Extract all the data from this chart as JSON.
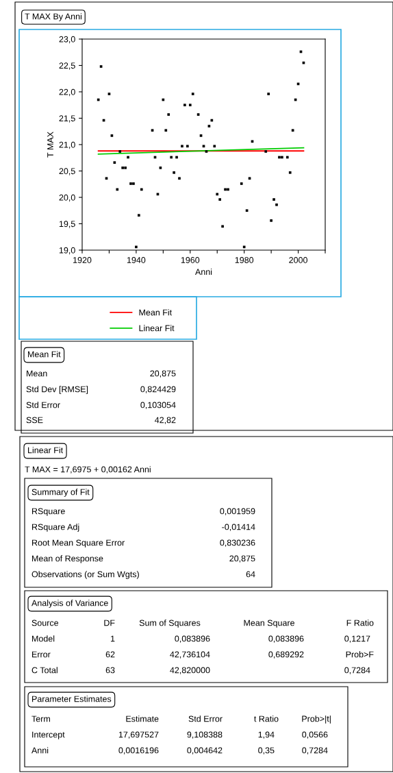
{
  "chart_data": {
    "type": "scatter",
    "title": "T MAX By Anni",
    "xlabel": "Anni",
    "ylabel": "T MAX",
    "xlim": [
      1920,
      2010
    ],
    "xticks": [
      1920,
      {
        "value": 1930,
        "label": null
      },
      1940,
      {
        "value": 1950,
        "label": null
      },
      1960,
      {
        "value": 1970,
        "label": null
      },
      1980,
      {
        "value": 1990,
        "label": null
      },
      2000,
      {
        "value": 2010,
        "label": null
      }
    ],
    "ylim": [
      19,
      23
    ],
    "yticks": [
      {
        "value": 19,
        "label": "19,0"
      },
      {
        "value": 19.5,
        "label": "19,5"
      },
      {
        "value": 20,
        "label": "20,0"
      },
      {
        "value": 20.5,
        "label": "20,5"
      },
      {
        "value": 21,
        "label": "21,0"
      },
      {
        "value": 21.5,
        "label": "21,5"
      },
      {
        "value": 22,
        "label": "22,0"
      },
      {
        "value": 22.5,
        "label": "22,5"
      },
      {
        "value": 23,
        "label": "23,0"
      }
    ],
    "grid": false,
    "legend": "bottom",
    "series": [
      {
        "marker": "square",
        "color": "#000000",
        "x": [
          1926,
          1927,
          1928,
          1929,
          1930,
          1931,
          1932,
          1933,
          1934,
          1935,
          1936,
          1937,
          1938,
          1939,
          1940,
          1941,
          1942,
          1946,
          1947,
          1948,
          1949,
          1950,
          1951,
          1952,
          1953,
          1954,
          1955,
          1956,
          1957,
          1958,
          1959,
          1960,
          1961,
          1963,
          1964,
          1965,
          1966,
          1967,
          1968,
          1969,
          1970,
          1971,
          1972,
          1973,
          1974,
          1979,
          1980,
          1981,
          1982,
          1983,
          1988,
          1989,
          1990,
          1991,
          1992,
          1993,
          1994,
          1996,
          1997,
          1998,
          1999,
          2000,
          2001,
          2002
        ],
        "values": [
          21.85,
          22.48,
          21.46,
          20.36,
          21.96,
          21.17,
          20.66,
          20.15,
          20.87,
          20.56,
          20.56,
          20.76,
          20.26,
          20.26,
          19.06,
          19.66,
          20.15,
          21.27,
          20.76,
          20.06,
          20.56,
          21.85,
          21.27,
          21.57,
          20.76,
          20.47,
          20.76,
          20.36,
          20.97,
          21.75,
          20.97,
          21.75,
          21.96,
          21.57,
          21.17,
          20.97,
          20.87,
          21.35,
          21.46,
          20.97,
          20.06,
          19.96,
          19.45,
          20.15,
          20.15,
          20.26,
          19.06,
          19.75,
          20.36,
          21.06,
          20.87,
          21.96,
          19.56,
          19.96,
          19.86,
          20.76,
          20.76,
          20.76,
          20.47,
          21.27,
          21.85,
          22.15,
          22.76,
          22.55
        ]
      },
      {
        "type": "line",
        "marker": "none",
        "name": "Mean Fit",
        "color": "#ff0000",
        "x": [
          1926,
          2002
        ],
        "values": [
          20.88,
          20.88
        ]
      },
      {
        "type": "line",
        "marker": "none",
        "name": "Linear Fit",
        "color": "#00cc00",
        "x": [
          1926,
          2002
        ],
        "values": [
          20.82,
          20.94
        ]
      }
    ],
    "annotations": [
      "Mean Fit",
      "Mean",
      "20,875",
      "Std Dev [RMSE]",
      "0,824429",
      "Std Error",
      "0,103054",
      "SSE",
      "42,82",
      "Linear Fit",
      "T MAX = 17,6975 + 0,00162 Anni",
      "Summary of Fit",
      "RSquare",
      "0,001959",
      "RSquare Adj",
      "-0,01414",
      "Root Mean Square Error",
      "0,830236",
      "Mean of Response",
      "20,875",
      "Observations (or Sum Wgts)",
      "64",
      "Analysis of Variance",
      "Source",
      "DF",
      "Sum of Squares",
      "Mean Square",
      "F Ratio",
      "Model",
      "1",
      "0,083896",
      "0,083896",
      "0,1217",
      "Error",
      "62",
      "42,736104",
      "0,689292",
      "Prob>F",
      "C Total",
      "63",
      "42,820000",
      "0,7284",
      "Parameter Estimates",
      "Term",
      "Estimate",
      "Std Error",
      "t Ratio",
      "Prob>|t|",
      "Intercept",
      "17,697527",
      "9,108388",
      "1,94",
      "0,0566",
      "Anni",
      "0,0016196",
      "0,004642",
      "0,35",
      "0,7284"
    ]
  }
}
